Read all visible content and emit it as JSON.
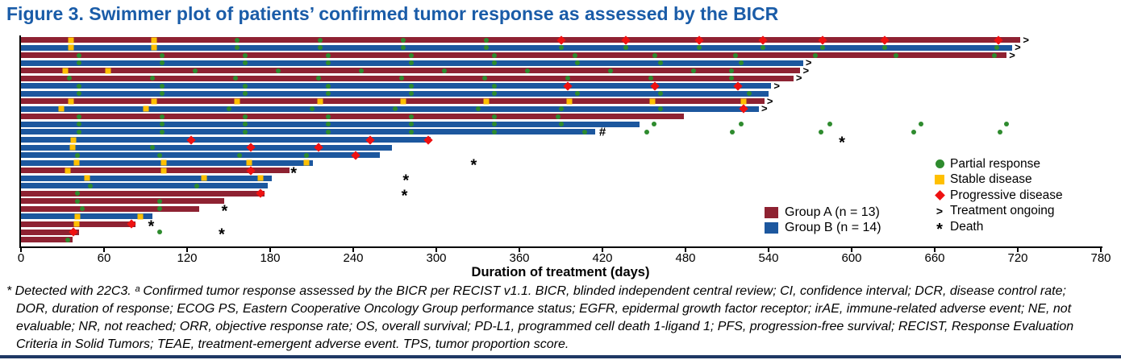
{
  "title": "Figure 3. Swimmer plot of patients’ confirmed tumor response as assessed by the BICR",
  "colors": {
    "title_blue": "#1a5ca8",
    "group_a": "#8e2232",
    "group_b": "#1c579e",
    "partial_response": "#2e8b2e",
    "stable_disease": "#ffc000",
    "progressive_disease": "#ee1111",
    "bottom_rule": "#1f3864"
  },
  "footnote": {
    "lines": [
      "* Detected with 22C3. ᵃ Confirmed tumor response assessed by the BICR per RECIST v1.1. BICR, blinded independent central review; CI, confidence interval; DCR, disease control rate;",
      "DOR, duration of response; ECOG PS, Eastern Cooperative Oncology Group performance status; EGFR, epidermal growth factor receptor; irAE, immune-related adverse event; NE, not",
      "evaluable; NR, not reached; ORR, objective response rate; OS, overall survival; PD-L1, programmed cell death 1-ligand 1; PFS, progression-free survival; RECIST, Response Evaluation",
      "Criteria in Solid Tumors; TEAE, treatment-emergent adverse event. TPS, tumor proportion score."
    ]
  },
  "chart_data": {
    "type": "swimmer",
    "xlabel": "Duration of treatment (days)",
    "xlim": [
      0,
      780
    ],
    "x_ticks": [
      0,
      60,
      120,
      180,
      240,
      300,
      360,
      420,
      480,
      540,
      600,
      660,
      720,
      780
    ],
    "grid": false,
    "legend_position": "right-inside",
    "groups": [
      {
        "id": "A",
        "name": "Group A (n = 13)"
      },
      {
        "id": "B",
        "name": "Group B (n = 14)"
      }
    ],
    "marker_legend": [
      {
        "type": "pr",
        "label": "Partial response"
      },
      {
        "type": "sd",
        "label": "Stable disease"
      },
      {
        "type": "pd",
        "label": "Progressive disease"
      },
      {
        "type": "ongoing",
        "label": "Treatment ongoing"
      },
      {
        "type": "death",
        "label": "Death"
      }
    ],
    "patients": [
      {
        "group": "A",
        "end": 722,
        "ongoing": true,
        "markers": [
          {
            "t": "sd",
            "d": 36
          },
          {
            "t": "sd",
            "d": 96
          },
          {
            "t": "pr",
            "d": 156
          },
          {
            "t": "pr",
            "d": 216
          },
          {
            "t": "pr",
            "d": 276
          },
          {
            "t": "pr",
            "d": 336
          },
          {
            "t": "pd",
            "d": 390
          },
          {
            "t": "pd",
            "d": 437
          },
          {
            "t": "pd",
            "d": 490
          },
          {
            "t": "pd",
            "d": 536
          },
          {
            "t": "pd",
            "d": 579
          },
          {
            "t": "pd",
            "d": 624
          },
          {
            "t": "pd",
            "d": 706
          }
        ]
      },
      {
        "group": "B",
        "end": 716,
        "ongoing": true,
        "markers": [
          {
            "t": "sd",
            "d": 36
          },
          {
            "t": "sd",
            "d": 96
          },
          {
            "t": "pr",
            "d": 156
          },
          {
            "t": "pr",
            "d": 216
          },
          {
            "t": "pr",
            "d": 276
          },
          {
            "t": "pr",
            "d": 336
          },
          {
            "t": "pr",
            "d": 390
          },
          {
            "t": "pr",
            "d": 437
          },
          {
            "t": "pr",
            "d": 490
          },
          {
            "t": "pr",
            "d": 536
          },
          {
            "t": "pr",
            "d": 579
          },
          {
            "t": "pr",
            "d": 624
          },
          {
            "t": "pr",
            "d": 705
          }
        ]
      },
      {
        "group": "A",
        "end": 712,
        "ongoing": true,
        "markers": [
          {
            "t": "pr",
            "d": 42
          },
          {
            "t": "pr",
            "d": 102
          },
          {
            "t": "pr",
            "d": 162
          },
          {
            "t": "pr",
            "d": 222
          },
          {
            "t": "pr",
            "d": 282
          },
          {
            "t": "pr",
            "d": 342
          },
          {
            "t": "pr",
            "d": 400
          },
          {
            "t": "pr",
            "d": 458
          },
          {
            "t": "pr",
            "d": 516
          },
          {
            "t": "pr",
            "d": 574
          },
          {
            "t": "pr",
            "d": 632
          },
          {
            "t": "pr",
            "d": 703
          }
        ]
      },
      {
        "group": "B",
        "end": 565,
        "ongoing": true,
        "markers": [
          {
            "t": "pr",
            "d": 42
          },
          {
            "t": "pr",
            "d": 102
          },
          {
            "t": "pr",
            "d": 162
          },
          {
            "t": "pr",
            "d": 222
          },
          {
            "t": "pr",
            "d": 282
          },
          {
            "t": "pr",
            "d": 342
          },
          {
            "t": "pr",
            "d": 402
          },
          {
            "t": "pr",
            "d": 462
          },
          {
            "t": "pr",
            "d": 520
          }
        ]
      },
      {
        "group": "A",
        "end": 563,
        "ongoing": true,
        "markers": [
          {
            "t": "sd",
            "d": 32
          },
          {
            "t": "sd",
            "d": 63
          },
          {
            "t": "pr",
            "d": 126
          },
          {
            "t": "pr",
            "d": 186
          },
          {
            "t": "pr",
            "d": 246
          },
          {
            "t": "pr",
            "d": 306
          },
          {
            "t": "pr",
            "d": 366
          },
          {
            "t": "pr",
            "d": 426
          },
          {
            "t": "pr",
            "d": 486
          },
          {
            "t": "pr",
            "d": 513
          }
        ]
      },
      {
        "group": "A",
        "end": 558,
        "ongoing": true,
        "markers": [
          {
            "t": "pr",
            "d": 35
          },
          {
            "t": "pr",
            "d": 95
          },
          {
            "t": "pr",
            "d": 155
          },
          {
            "t": "pr",
            "d": 215
          },
          {
            "t": "pr",
            "d": 275
          },
          {
            "t": "pr",
            "d": 335
          },
          {
            "t": "pr",
            "d": 395
          },
          {
            "t": "pr",
            "d": 455
          },
          {
            "t": "pr",
            "d": 513
          }
        ]
      },
      {
        "group": "B",
        "end": 542,
        "ongoing": true,
        "markers": [
          {
            "t": "pr",
            "d": 42
          },
          {
            "t": "pr",
            "d": 102
          },
          {
            "t": "pr",
            "d": 162
          },
          {
            "t": "pr",
            "d": 222
          },
          {
            "t": "pr",
            "d": 282
          },
          {
            "t": "pr",
            "d": 342
          },
          {
            "t": "pd",
            "d": 395
          },
          {
            "t": "pd",
            "d": 458
          },
          {
            "t": "pd",
            "d": 518
          }
        ]
      },
      {
        "group": "B",
        "end": 540,
        "ongoing": false,
        "markers": [
          {
            "t": "pr",
            "d": 42
          },
          {
            "t": "pr",
            "d": 102
          },
          {
            "t": "pr",
            "d": 162
          },
          {
            "t": "pr",
            "d": 222
          },
          {
            "t": "pr",
            "d": 282
          },
          {
            "t": "pr",
            "d": 342
          },
          {
            "t": "pr",
            "d": 402
          },
          {
            "t": "pr",
            "d": 462
          },
          {
            "t": "pr",
            "d": 526
          }
        ]
      },
      {
        "group": "A",
        "end": 537,
        "ongoing": true,
        "markers": [
          {
            "t": "sd",
            "d": 36
          },
          {
            "t": "sd",
            "d": 96
          },
          {
            "t": "sd",
            "d": 156
          },
          {
            "t": "sd",
            "d": 216
          },
          {
            "t": "sd",
            "d": 276
          },
          {
            "t": "sd",
            "d": 336
          },
          {
            "t": "sd",
            "d": 396
          },
          {
            "t": "sd",
            "d": 456
          },
          {
            "t": "sd",
            "d": 522
          }
        ]
      },
      {
        "group": "B",
        "end": 533,
        "ongoing": true,
        "markers": [
          {
            "t": "sd",
            "d": 29
          },
          {
            "t": "sd",
            "d": 90
          },
          {
            "t": "pr",
            "d": 150
          },
          {
            "t": "pr",
            "d": 210
          },
          {
            "t": "pr",
            "d": 270
          },
          {
            "t": "pr",
            "d": 330
          },
          {
            "t": "pr",
            "d": 390
          },
          {
            "t": "pr",
            "d": 462
          },
          {
            "t": "pd",
            "d": 522
          }
        ]
      },
      {
        "group": "A",
        "end": 479,
        "ongoing": false,
        "markers": [
          {
            "t": "pr",
            "d": 42
          },
          {
            "t": "pr",
            "d": 102
          },
          {
            "t": "pr",
            "d": 162
          },
          {
            "t": "pr",
            "d": 222
          },
          {
            "t": "pr",
            "d": 282
          },
          {
            "t": "pr",
            "d": 342
          },
          {
            "t": "pr",
            "d": 388
          }
        ]
      },
      {
        "group": "B",
        "end": 447,
        "ongoing": false,
        "markers": [
          {
            "t": "pr",
            "d": 42
          },
          {
            "t": "pr",
            "d": 102
          },
          {
            "t": "pr",
            "d": 162
          },
          {
            "t": "pr",
            "d": 222
          },
          {
            "t": "pr",
            "d": 282
          },
          {
            "t": "pr",
            "d": 342
          },
          {
            "t": "pr",
            "d": 390
          },
          {
            "t": "pr",
            "d": 457
          },
          {
            "t": "pr",
            "d": 520
          },
          {
            "t": "pr",
            "d": 584
          },
          {
            "t": "pr",
            "d": 650
          },
          {
            "t": "pr",
            "d": 712
          }
        ]
      },
      {
        "group": "B",
        "end": 415,
        "ongoing": false,
        "hash": 420,
        "markers": [
          {
            "t": "pr",
            "d": 42
          },
          {
            "t": "pr",
            "d": 102
          },
          {
            "t": "pr",
            "d": 162
          },
          {
            "t": "pr",
            "d": 222
          },
          {
            "t": "pr",
            "d": 282
          },
          {
            "t": "pr",
            "d": 342
          },
          {
            "t": "pr",
            "d": 407
          },
          {
            "t": "pr",
            "d": 452
          },
          {
            "t": "pr",
            "d": 514
          },
          {
            "t": "pr",
            "d": 578
          },
          {
            "t": "pr",
            "d": 645
          },
          {
            "t": "pr",
            "d": 707
          }
        ]
      },
      {
        "group": "B",
        "end": 296,
        "ongoing": false,
        "death": 593,
        "markers": [
          {
            "t": "sd",
            "d": 38
          },
          {
            "t": "pd",
            "d": 123
          },
          {
            "t": "pd",
            "d": 252
          },
          {
            "t": "pd",
            "d": 294
          }
        ]
      },
      {
        "group": "B",
        "end": 268,
        "ongoing": false,
        "markers": [
          {
            "t": "sd",
            "d": 37
          },
          {
            "t": "pr",
            "d": 95
          },
          {
            "t": "pd",
            "d": 166
          },
          {
            "t": "pd",
            "d": 215
          }
        ]
      },
      {
        "group": "B",
        "end": 259,
        "ongoing": false,
        "markers": [
          {
            "t": "pr",
            "d": 41
          },
          {
            "t": "pr",
            "d": 100
          },
          {
            "t": "pr",
            "d": 158
          },
          {
            "t": "pr",
            "d": 206
          },
          {
            "t": "pd",
            "d": 242
          }
        ]
      },
      {
        "group": "B",
        "end": 211,
        "ongoing": false,
        "death": 327,
        "markers": [
          {
            "t": "sd",
            "d": 40
          },
          {
            "t": "sd",
            "d": 103
          },
          {
            "t": "sd",
            "d": 165
          },
          {
            "t": "sd",
            "d": 206
          }
        ]
      },
      {
        "group": "A",
        "end": 194,
        "ongoing": false,
        "death": 197,
        "markers": [
          {
            "t": "sd",
            "d": 34
          },
          {
            "t": "sd",
            "d": 103
          },
          {
            "t": "pd",
            "d": 166
          }
        ]
      },
      {
        "group": "B",
        "end": 181,
        "ongoing": false,
        "death": 278,
        "markers": [
          {
            "t": "sd",
            "d": 48
          },
          {
            "t": "sd",
            "d": 132
          },
          {
            "t": "sd",
            "d": 173
          }
        ]
      },
      {
        "group": "B",
        "end": 178,
        "ongoing": false,
        "markers": [
          {
            "t": "pr",
            "d": 50
          },
          {
            "t": "pr",
            "d": 127
          }
        ]
      },
      {
        "group": "A",
        "end": 176,
        "ongoing": false,
        "death": 277,
        "markers": [
          {
            "t": "pr",
            "d": 41
          },
          {
            "t": "pd",
            "d": 173
          }
        ]
      },
      {
        "group": "A",
        "end": 147,
        "ongoing": false,
        "markers": [
          {
            "t": "pr",
            "d": 41
          },
          {
            "t": "pr",
            "d": 100
          }
        ]
      },
      {
        "group": "A",
        "end": 129,
        "ongoing": false,
        "death": 147,
        "markers": [
          {
            "t": "pr",
            "d": 44
          },
          {
            "t": "pr",
            "d": 100
          }
        ]
      },
      {
        "group": "B",
        "end": 95,
        "ongoing": false,
        "markers": [
          {
            "t": "sd",
            "d": 41
          },
          {
            "t": "sd",
            "d": 86
          }
        ]
      },
      {
        "group": "A",
        "end": 83,
        "ongoing": false,
        "death": 94,
        "markers": [
          {
            "t": "sd",
            "d": 40
          },
          {
            "t": "pd",
            "d": 80
          }
        ]
      },
      {
        "group": "A",
        "end": 42,
        "ongoing": false,
        "death": 145,
        "markers": [
          {
            "t": "pd",
            "d": 38
          },
          {
            "t": "pr",
            "d": 100
          }
        ]
      },
      {
        "group": "A",
        "end": 37,
        "ongoing": false,
        "markers": [
          {
            "t": "pr",
            "d": 34
          }
        ]
      }
    ]
  }
}
